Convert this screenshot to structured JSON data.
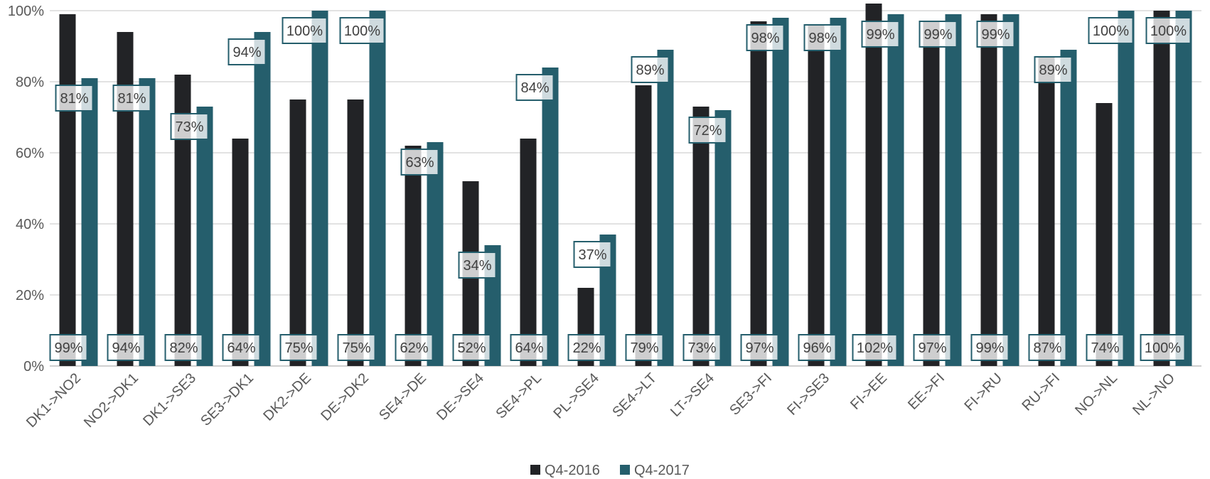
{
  "chart_data": {
    "type": "bar",
    "title": "",
    "xlabel": "",
    "ylabel": "",
    "ylim": [
      0,
      100
    ],
    "yticks": [
      0,
      20,
      40,
      60,
      80,
      100
    ],
    "ytick_labels": [
      "0%",
      "20%",
      "40%",
      "60%",
      "80%",
      "100%"
    ],
    "grid": true,
    "legend_position": "bottom",
    "categories": [
      "DK1->NO2",
      "NO2->DK1",
      "DK1->SE3",
      "SE3->DK1",
      "DK2->DE",
      "DE->DK2",
      "SE4->DE",
      "DE->SE4",
      "SE4->PL",
      "PL->SE4",
      "SE4->LT",
      "LT->SE4",
      "SE3->FI",
      "FI->SE3",
      "FI->EE",
      "EE->FI",
      "FI->RU",
      "RU->FI",
      "NO->NL",
      "NL->NO"
    ],
    "series": [
      {
        "name": "Q4-2016",
        "color": "#222326",
        "values": [
          99,
          94,
          82,
          64,
          75,
          75,
          62,
          52,
          64,
          22,
          79,
          73,
          97,
          96,
          102,
          97,
          99,
          87,
          74,
          100
        ],
        "labels": [
          "99%",
          "94%",
          "82%",
          "64%",
          "75%",
          "75%",
          "62%",
          "52%",
          "64%",
          "22%",
          "79%",
          "73%",
          "97%",
          "96%",
          "102%",
          "97%",
          "99%",
          "87%",
          "74%",
          "100%"
        ]
      },
      {
        "name": "Q4-2017",
        "color": "#255E6C",
        "values": [
          81,
          81,
          73,
          94,
          100,
          100,
          63,
          34,
          84,
          37,
          89,
          72,
          98,
          98,
          99,
          99,
          99,
          89,
          100,
          100
        ],
        "labels": [
          "81%",
          "81%",
          "73%",
          "94%",
          "100%",
          "100%",
          "63%",
          "34%",
          "84%",
          "37%",
          "89%",
          "72%",
          "98%",
          "98%",
          "99%",
          "99%",
          "99%",
          "89%",
          "100%",
          "100%"
        ]
      }
    ]
  }
}
